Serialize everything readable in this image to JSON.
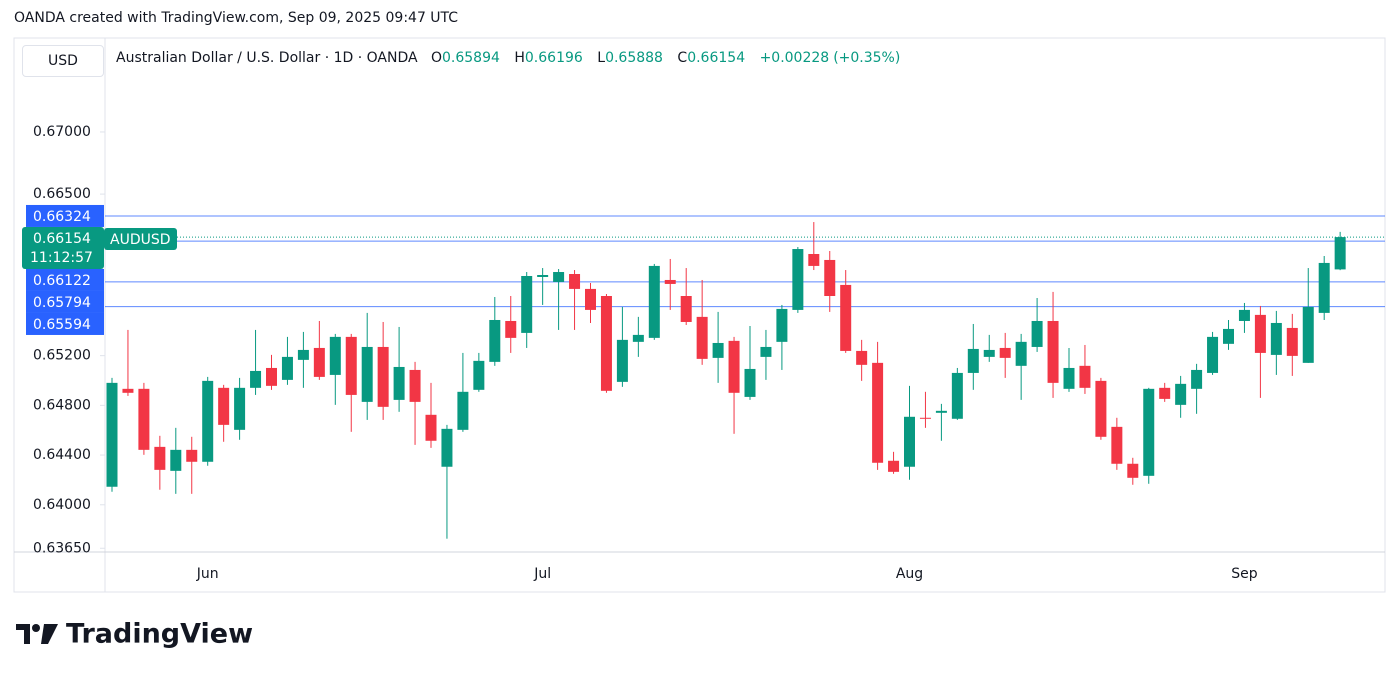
{
  "header": {
    "attribution": "OANDA created with TradingView.com, Sep 09, 2025 09:47 UTC"
  },
  "footer": {
    "logo": "TradingView"
  },
  "chart_data": {
    "type": "candlestick",
    "currency": "USD",
    "title": "Australian Dollar / U.S. Dollar · 1D · OANDA",
    "ohlc_labels": [
      "O",
      "H",
      "L",
      "C"
    ],
    "change": {
      "value": 0.00228,
      "label": "+0.00228"
    },
    "change_percent": {
      "value": 0.35,
      "label": "(+0.35%)"
    },
    "countdown": "11:12:57",
    "categories": [
      null,
      null,
      null,
      null,
      null,
      null,
      "Jun",
      null,
      null,
      null,
      null,
      null,
      null,
      null,
      null,
      null,
      null,
      null,
      null,
      null,
      null,
      null,
      null,
      null,
      null,
      null,
      null,
      "Jul",
      null,
      null,
      null,
      null,
      null,
      null,
      null,
      null,
      null,
      null,
      null,
      null,
      null,
      null,
      null,
      null,
      null,
      null,
      null,
      null,
      null,
      null,
      "Aug",
      null,
      null,
      null,
      null,
      null,
      null,
      null,
      null,
      null,
      null,
      null,
      null,
      null,
      null,
      null,
      null,
      null,
      null,
      null,
      null,
      "Sep",
      null,
      null,
      null,
      null,
      null,
      null
    ],
    "series": [
      {
        "name": "AUDUSD",
        "up_color": "#089981",
        "down_color": "#f23645",
        "open": [
          0.64145,
          0.64933,
          0.64933,
          0.64466,
          0.64273,
          0.64442,
          0.64346,
          0.64941,
          0.64603,
          0.64941,
          0.65101,
          0.65005,
          0.65166,
          0.65262,
          0.65045,
          0.65351,
          0.64828,
          0.6527,
          0.64844,
          0.65085,
          0.64724,
          0.64306,
          0.64603,
          0.64925,
          0.6515,
          0.65479,
          0.65383,
          0.65833,
          0.65793,
          0.65857,
          0.65737,
          0.6568,
          0.64989,
          0.65311,
          0.65343,
          0.65809,
          0.6568,
          0.65512,
          0.65182,
          0.65319,
          0.64868,
          0.6519,
          0.65311,
          0.65568,
          0.66018,
          0.6597,
          0.65769,
          0.65238,
          0.65142,
          0.64354,
          0.64306,
          0.647,
          0.6474,
          0.64692,
          0.65061,
          0.6519,
          0.65262,
          0.65118,
          0.6527,
          0.65479,
          0.64933,
          0.65118,
          0.64997,
          0.64627,
          0.6433,
          0.64233,
          0.64941,
          0.64804,
          0.64933,
          0.65061,
          0.65295,
          0.65479,
          0.65528,
          0.65206,
          0.65423,
          0.65142,
          0.65544,
          0.65894
        ],
        "high": [
          0.65021,
          0.65407,
          0.64981,
          0.64555,
          0.64619,
          0.64547,
          0.65029,
          0.64965,
          0.65021,
          0.65407,
          0.65206,
          0.65351,
          0.65391,
          0.65479,
          0.65375,
          0.65375,
          0.65544,
          0.65471,
          0.65431,
          0.6515,
          0.64981,
          0.64643,
          0.65222,
          0.65222,
          0.65672,
          0.6568,
          0.65873,
          0.65905,
          0.65897,
          0.65889,
          0.65785,
          0.65696,
          0.65592,
          0.65512,
          0.65938,
          0.65978,
          0.65905,
          0.65809,
          0.65552,
          0.65351,
          0.65439,
          0.65407,
          0.65608,
          0.66074,
          0.66275,
          0.66042,
          0.65889,
          0.65327,
          0.65311,
          0.64426,
          0.64957,
          0.64909,
          0.64812,
          0.65101,
          0.65455,
          0.65367,
          0.65383,
          0.65375,
          0.65664,
          0.65713,
          0.65262,
          0.65286,
          0.65021,
          0.647,
          0.64378,
          0.64941,
          0.64981,
          0.65037,
          0.65134,
          0.65391,
          0.65487,
          0.65624,
          0.656,
          0.6556,
          0.65536,
          0.65905,
          0.66002,
          0.66196
        ],
        "low": [
          0.64105,
          0.64876,
          0.64402,
          0.64121,
          0.64088,
          0.64088,
          0.64314,
          0.64507,
          0.64523,
          0.64884,
          0.64925,
          0.64965,
          0.64941,
          0.65005,
          0.64804,
          0.64587,
          0.64683,
          0.64683,
          0.64748,
          0.64482,
          0.64458,
          0.63727,
          0.64587,
          0.64909,
          0.65118,
          0.65222,
          0.65262,
          0.65608,
          0.65407,
          0.65407,
          0.65463,
          0.64901,
          0.64949,
          0.6519,
          0.65327,
          0.65568,
          0.65447,
          0.65126,
          0.64981,
          0.64571,
          0.64844,
          0.65005,
          0.65085,
          0.65544,
          0.65889,
          0.65552,
          0.65222,
          0.64997,
          0.64281,
          0.64249,
          0.64201,
          0.64619,
          0.64515,
          0.64683,
          0.64925,
          0.6515,
          0.65021,
          0.64844,
          0.6523,
          0.6486,
          0.64909,
          0.64892,
          0.64523,
          0.64281,
          0.64161,
          0.64169,
          0.64828,
          0.647,
          0.64732,
          0.65045,
          0.65246,
          0.65383,
          0.6486,
          0.65045,
          0.65037,
          0.65142,
          0.65487,
          0.65888
        ],
        "close": [
          0.64981,
          0.64901,
          0.64442,
          0.64281,
          0.64442,
          0.64346,
          0.64997,
          0.64643,
          0.64941,
          0.65077,
          0.64957,
          0.6519,
          0.65246,
          0.65029,
          0.65351,
          0.64884,
          0.6527,
          0.64788,
          0.65109,
          0.64828,
          0.64515,
          0.64611,
          0.64909,
          0.65158,
          0.65487,
          0.65343,
          0.65841,
          0.65849,
          0.65873,
          0.65737,
          0.65568,
          0.64917,
          0.65327,
          0.65367,
          0.65922,
          0.65777,
          0.65471,
          0.65174,
          0.65302,
          0.64901,
          0.65093,
          0.6527,
          0.65576,
          0.66058,
          0.65922,
          0.6568,
          0.65238,
          0.65126,
          0.64338,
          0.64265,
          0.64708,
          0.64692,
          0.64756,
          0.65061,
          0.65254,
          0.65246,
          0.65182,
          0.65311,
          0.65479,
          0.64981,
          0.65101,
          0.64941,
          0.64547,
          0.6433,
          0.64217,
          0.64933,
          0.64852,
          0.64973,
          0.65085,
          0.65351,
          0.65415,
          0.65568,
          0.65222,
          0.65463,
          0.65198,
          0.65592,
          0.65946,
          0.66154
        ]
      }
    ],
    "levels": [
      0.66324,
      0.66122,
      0.65794,
      0.65594
    ],
    "level_color": "#2962ff",
    "ylim": [
      0.6362,
      0.6774
    ],
    "yticks": [
      {
        "value": 0.6365,
        "label": "0.63650"
      },
      {
        "value": 0.64,
        "label": "0.64000"
      },
      {
        "value": 0.644,
        "label": "0.64400"
      },
      {
        "value": 0.648,
        "label": "0.64800"
      },
      {
        "value": 0.652,
        "label": "0.65200"
      },
      {
        "value": 0.665,
        "label": "0.66500"
      },
      {
        "value": 0.67,
        "label": "0.67000"
      }
    ]
  }
}
